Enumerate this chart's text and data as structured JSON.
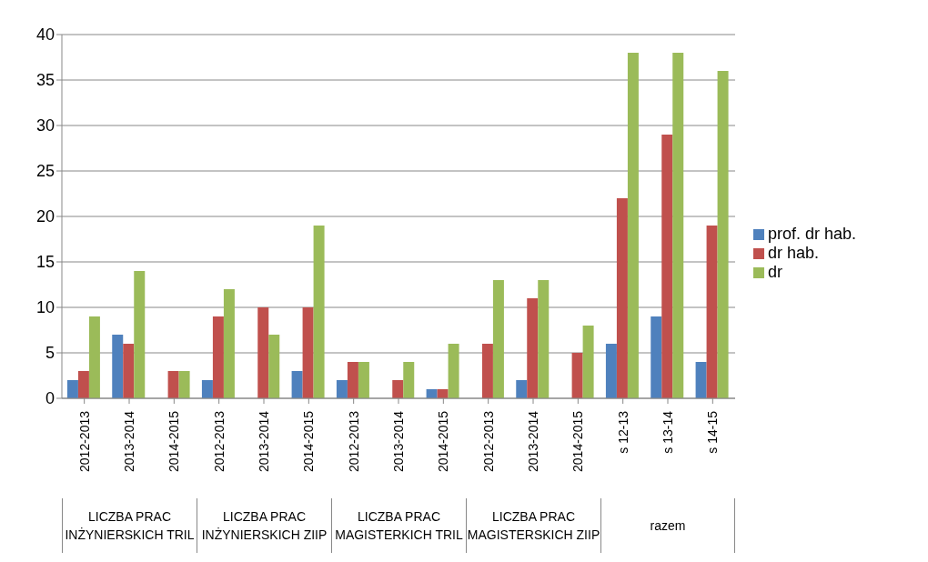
{
  "chart_data": {
    "type": "bar",
    "categories": [
      "2012-2013",
      "2013-2014",
      "2014-2015",
      "2012-2013",
      "2013-2014",
      "2014-2015",
      "2012-2013",
      "2013-2014",
      "2014-2015",
      "2012-2013",
      "2013-2014",
      "2014-2015",
      "s 12-13",
      "s 13-14",
      "s 14-15"
    ],
    "series": [
      {
        "name": "prof. dr hab.",
        "color": "#4f81bd",
        "values": [
          2,
          7,
          0,
          2,
          0,
          3,
          2,
          0,
          1,
          0,
          2,
          0,
          6,
          9,
          4
        ]
      },
      {
        "name": "dr hab.",
        "color": "#c0504d",
        "values": [
          3,
          6,
          3,
          9,
          10,
          10,
          4,
          2,
          1,
          6,
          11,
          5,
          22,
          29,
          19
        ]
      },
      {
        "name": "dr",
        "color": "#9bbb59",
        "values": [
          9,
          14,
          3,
          12,
          7,
          19,
          4,
          4,
          6,
          13,
          13,
          8,
          38,
          38,
          36
        ]
      }
    ],
    "annotations": [
      "LICZBA PRAC INŻYNIERSKICH TRIL",
      "LICZBA PRAC INŻYNIERSKICH ZIIP",
      "LICZBA PRAC MAGISTERKICH TRIL",
      "LICZBA PRAC MAGISTERSKICH ZIIP",
      "razem"
    ],
    "ylim": [
      0,
      40
    ],
    "yticks": [
      0,
      5,
      10,
      15,
      20,
      25,
      30,
      35,
      40
    ],
    "grid": "y",
    "legend": "right"
  }
}
